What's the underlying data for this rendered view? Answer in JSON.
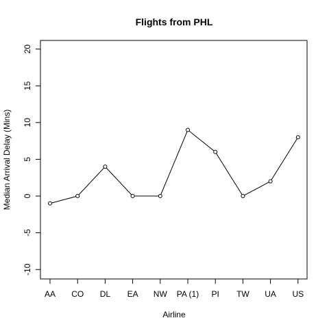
{
  "chart_data": {
    "type": "line",
    "title": "Flights from PHL",
    "xlabel": "Airline",
    "ylabel": "Median Arrival Delay (Mins)",
    "categories": [
      "AA",
      "CO",
      "DL",
      "EA",
      "NW",
      "PA (1)",
      "PI",
      "TW",
      "UA",
      "US"
    ],
    "values": [
      -1,
      0,
      4,
      0,
      0,
      9,
      6,
      0,
      2,
      8
    ],
    "ylim": [
      -10,
      20
    ],
    "yticks": [
      -10,
      -5,
      0,
      5,
      10,
      15,
      20
    ],
    "grid": false,
    "legend": "none",
    "marker": "open-circle"
  }
}
